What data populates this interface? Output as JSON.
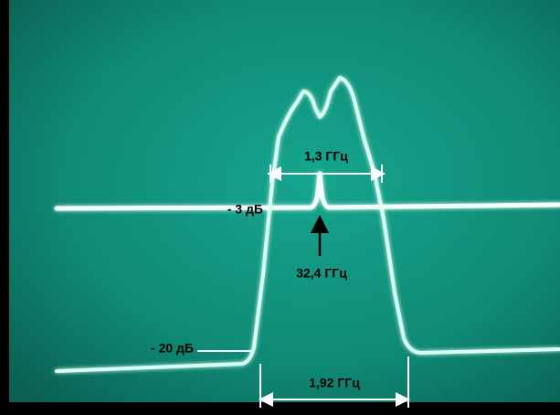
{
  "annotations": {
    "bandwidth_3db": "1,3 ГГц",
    "level_3db": "- 3 дБ",
    "center_frequency": "32,4 ГГц",
    "level_20db": "- 20 дБ",
    "bandwidth_20db": "1,92 ГГц"
  }
}
